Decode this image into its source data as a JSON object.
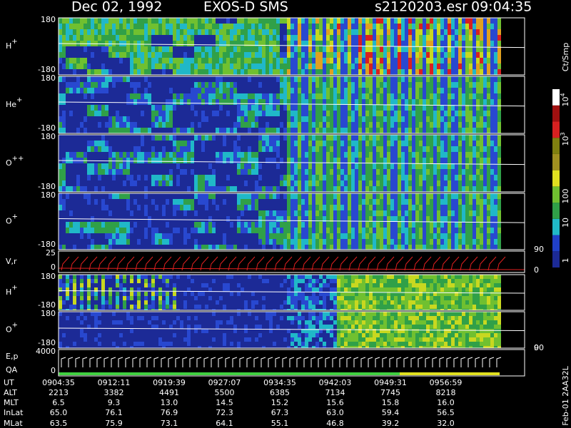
{
  "header": {
    "date": "Dec 02, 1992",
    "instrument": "EXOS-D SMS",
    "file": "s2120203.esr",
    "time": "09:04:35"
  },
  "panels": [
    {
      "label": "H",
      "sup": "+",
      "ticks": [
        "180",
        "-180"
      ]
    },
    {
      "label": "He",
      "sup": "+",
      "ticks": [
        "180",
        "-180"
      ]
    },
    {
      "label": "O",
      "sup": "++",
      "ticks": [
        "180",
        "-180"
      ]
    },
    {
      "label": "O",
      "sup": "+",
      "ticks": [
        "180",
        "-180"
      ]
    },
    {
      "label": "V,r",
      "ticks": [
        "25",
        "0"
      ],
      "right_ticks": [
        "90",
        "0"
      ]
    },
    {
      "label": "H",
      "sup": "+",
      "ticks": [
        "180",
        "-180"
      ]
    },
    {
      "label": "O",
      "sup": "+",
      "ticks": [
        "180",
        "-180"
      ],
      "right_ticks": [
        "90"
      ]
    },
    {
      "label": "E,p",
      "label2": "QA",
      "ticks": [
        "4000",
        "0"
      ],
      "right_ticks": [
        "0"
      ]
    }
  ],
  "colorbar": {
    "unit": "Ct/Smp",
    "labels": [
      {
        "base": "10",
        "sup": "4"
      },
      {
        "base": "10",
        "sup": "3"
      },
      {
        "base": "100"
      },
      {
        "base": "10"
      },
      {
        "base": "1"
      }
    ]
  },
  "footer": {
    "rows": [
      {
        "label": "UT",
        "values": [
          "0904:35",
          "0912:11",
          "0919:39",
          "0927:07",
          "0934:35",
          "0942:03",
          "0949:31",
          "0956:59"
        ]
      },
      {
        "label": "ALT",
        "values": [
          "2213",
          "3382",
          "4491",
          "5500",
          "6385",
          "7134",
          "7745",
          "8218"
        ]
      },
      {
        "label": "MLT",
        "values": [
          "6.5",
          "9.3",
          "13.0",
          "14.5",
          "15.2",
          "15.6",
          "15.8",
          "16.0"
        ]
      },
      {
        "label": "InLat",
        "values": [
          "65.0",
          "76.1",
          "76.9",
          "72.3",
          "67.3",
          "63.0",
          "59.4",
          "56.5"
        ]
      },
      {
        "label": "MLat",
        "values": [
          "63.5",
          "75.9",
          "73.1",
          "64.1",
          "55.1",
          "46.8",
          "39.2",
          "32.0"
        ]
      }
    ]
  },
  "stamp": "Feb-01 2AA32L"
}
